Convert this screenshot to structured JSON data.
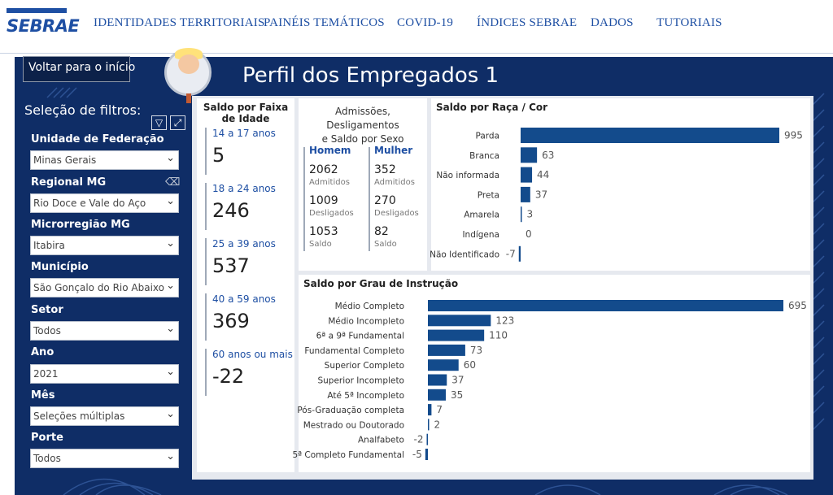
{
  "logo": {
    "text": "SEBRAE"
  },
  "nav": {
    "items": [
      "IDENTIDADES TERRITORIAIS",
      "PAINÉIS TEMÁTICOS",
      "COVID-19",
      "ÍNDICES SEBRAE",
      "DADOS",
      "TUTORIAIS"
    ]
  },
  "page": {
    "title": "Perfil dos Empregados 1",
    "back_label": "Voltar para o início"
  },
  "colors": {
    "navy": "#0f2d66",
    "accent": "#1e4fa3",
    "bar": "#134b8c"
  },
  "filters": {
    "title": "Seleção de filtros:",
    "items": [
      {
        "label": "Unidade de Federação",
        "value": "Minas Gerais"
      },
      {
        "label": "Regional MG",
        "value": "Rio Doce e Vale do Aço"
      },
      {
        "label": "Microrregião MG",
        "value": "Itabira"
      },
      {
        "label": "Município",
        "value": "São Gonçalo do Rio Abaixo"
      },
      {
        "label": "Setor",
        "value": "Todos"
      },
      {
        "label": "Ano",
        "value": "2021"
      },
      {
        "label": "Mês",
        "value": "Seleções múltiplas"
      },
      {
        "label": "Porte",
        "value": "Todos"
      }
    ]
  },
  "age": {
    "title": "Saldo por Faixa de Idade",
    "items": [
      {
        "label": "14 a 17 anos",
        "value": "5"
      },
      {
        "label": "18 a 24 anos",
        "value": "246"
      },
      {
        "label": "25 a 39 anos",
        "value": "537"
      },
      {
        "label": "40 a 59 anos",
        "value": "369"
      },
      {
        "label": "60 anos ou mais",
        "value": "-22"
      }
    ]
  },
  "sex": {
    "title_line1": "Admissões, Desligamentos",
    "title_line2": "e Saldo por Sexo",
    "columns": [
      {
        "name": "Homem",
        "admitidos": "2062",
        "desligados": "1009",
        "saldo": "1053"
      },
      {
        "name": "Mulher",
        "admitidos": "352",
        "desligados": "270",
        "saldo": "82"
      }
    ],
    "captions": {
      "admitidos": "Admitidos",
      "desligados": "Desligados",
      "saldo": "Saldo"
    }
  },
  "chart_data": [
    {
      "type": "bar",
      "orientation": "horizontal",
      "title": "Saldo por Raça / Cor",
      "categories": [
        "Parda",
        "Branca",
        "Não informada",
        "Preta",
        "Amarela",
        "Indígena",
        "Não Identificado"
      ],
      "values": [
        995,
        63,
        44,
        37,
        3,
        0,
        -7
      ]
    },
    {
      "type": "bar",
      "orientation": "horizontal",
      "title": "Saldo por Grau de Instrução",
      "categories": [
        "Médio Completo",
        "Médio Incompleto",
        "6ª a 9ª Fundamental",
        "Fundamental Completo",
        "Superior Completo",
        "Superior Incompleto",
        "Até 5ª Incompleto",
        "Pós-Graduação completa",
        "Mestrado ou Doutorado",
        "Analfabeto",
        "5ª Completo Fundamental"
      ],
      "values": [
        695,
        123,
        110,
        73,
        60,
        37,
        35,
        7,
        2,
        -2,
        -5
      ]
    }
  ]
}
